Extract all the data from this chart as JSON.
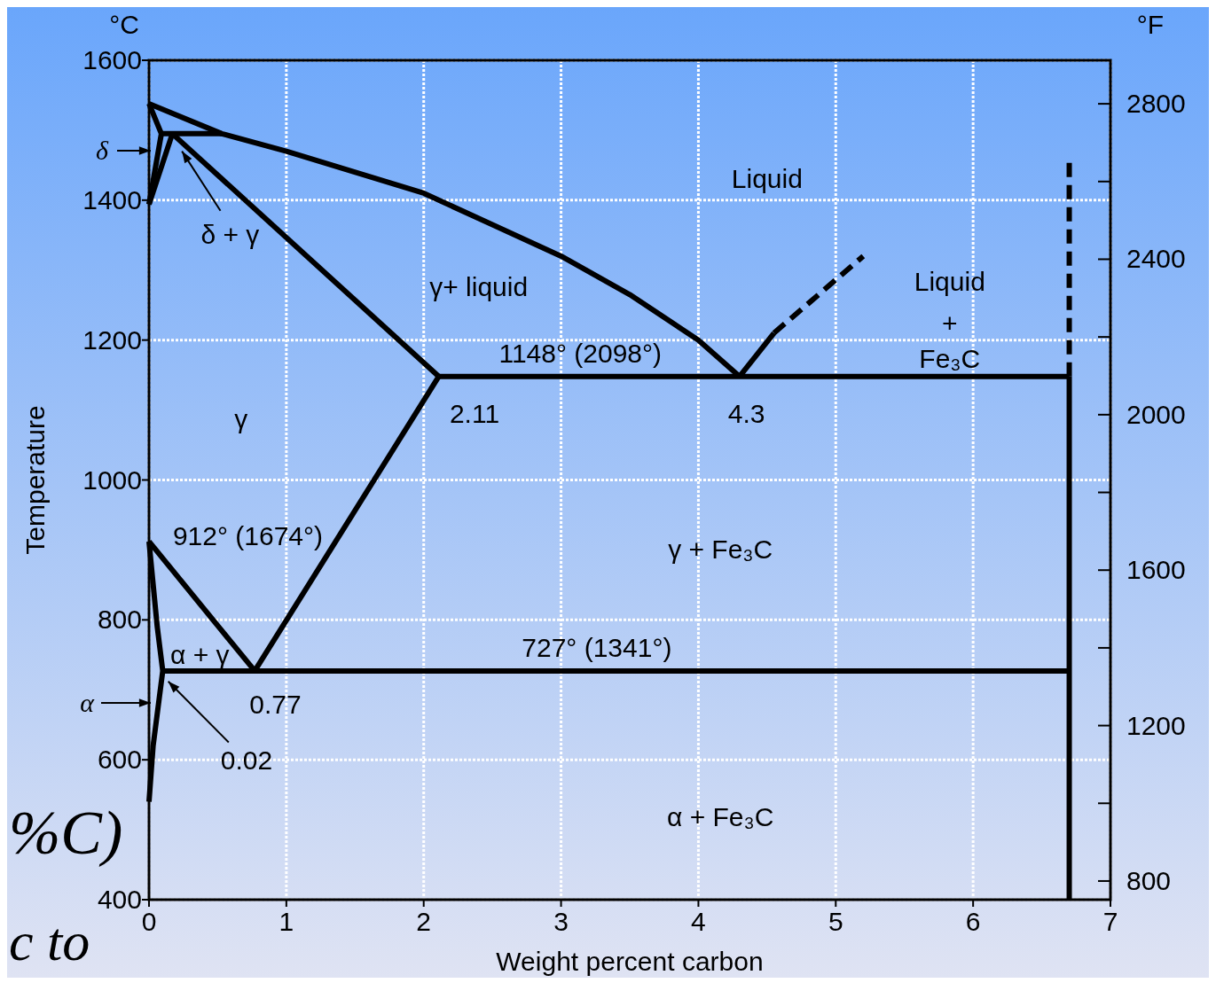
{
  "chart_data": {
    "type": "line",
    "xlabel": "Weight percent carbon",
    "ylabel": "Temperature",
    "y2label": "°F",
    "xlim": [
      0,
      7
    ],
    "xticks": [
      0,
      1,
      2,
      3,
      4,
      5,
      6,
      7
    ],
    "ylim": [
      400,
      1600
    ],
    "yticks": [
      400,
      600,
      800,
      1000,
      1200,
      1400,
      1600
    ],
    "y2lim": [
      752,
      2912
    ],
    "y2ticks": [
      800,
      {
        "value": 1000,
        "label": null
      },
      1200,
      {
        "value": 1400,
        "label": null
      },
      1600,
      {
        "value": 1800,
        "label": null
      },
      2000,
      {
        "value": 2200,
        "label": null
      },
      2400,
      {
        "value": 2600,
        "label": null
      },
      2800
    ],
    "grid": true,
    "series": [
      {
        "color": "#000000",
        "x": [
          0,
          0.53,
          1,
          2,
          3,
          3.5,
          4,
          4.3
        ],
        "values": [
          1538,
          1495,
          1470,
          1410,
          1320,
          1265,
          1200,
          1148
        ]
      },
      {
        "color": "#000000",
        "x": [
          4.3,
          4.55
        ],
        "values": [
          1148,
          1210
        ]
      },
      {
        "color": "#000000",
        "line_style": "dashed",
        "x": [
          4.55,
          5.2
        ],
        "values": [
          1210,
          1320
        ]
      },
      {
        "color": "#000000",
        "x": [
          2.11,
          6.7
        ],
        "values": [
          1148,
          1148
        ]
      },
      {
        "color": "#000000",
        "x": [
          0.17,
          2.11
        ],
        "values": [
          1495,
          1148
        ]
      },
      {
        "color": "#000000",
        "x": [
          2.11,
          0.77
        ],
        "values": [
          1148,
          727
        ]
      },
      {
        "color": "#000000",
        "x": [
          0,
          0.77
        ],
        "values": [
          912,
          727
        ]
      },
      {
        "color": "#000000",
        "x": [
          0.1,
          6.7
        ],
        "values": [
          727,
          727
        ]
      },
      {
        "color": "#000000",
        "x": [
          6.7,
          6.7
        ],
        "values": [
          400,
          1148
        ]
      },
      {
        "color": "#000000",
        "line_style": "dashed",
        "x": [
          6.7,
          6.7
        ],
        "values": [
          1148,
          1460
        ]
      },
      {
        "color": "#000000",
        "x": [
          0,
          0.06,
          0.1,
          0.03,
          0
        ],
        "values": [
          912,
          790,
          727,
          620,
          540
        ]
      },
      {
        "color": "#000000",
        "x": [
          0,
          0.09,
          0
        ],
        "values": [
          1538,
          1495,
          1394
        ]
      },
      {
        "color": "#000000",
        "x": [
          0.09,
          0.53
        ],
        "values": [
          1495,
          1495
        ]
      },
      {
        "color": "#000000",
        "x": [
          0,
          0.17
        ],
        "values": [
          1394,
          1495
        ]
      }
    ],
    "annotations": [
      "°C",
      "δ",
      "α",
      "%C)",
      "c to",
      "Liquid",
      "γ+ liquid",
      "Liquid",
      "+",
      "Fe₃C",
      "1148° (2098°)",
      "2.11",
      "4.3",
      "γ",
      "912° (1674°)",
      "γ + Fe₃C",
      "α + γ",
      "727° (1341°)",
      "0.77",
      "0.02",
      "α + Fe₃C",
      "δ + γ"
    ]
  }
}
